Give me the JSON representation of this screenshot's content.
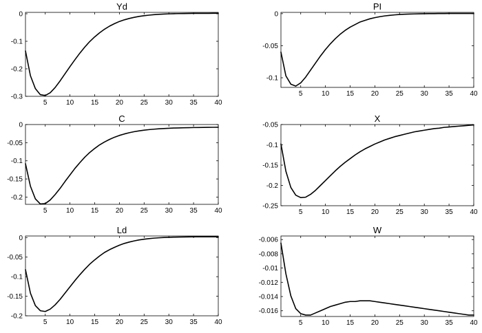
{
  "chart_data": [
    {
      "type": "line",
      "title": "Yd",
      "xlim": [
        1,
        40
      ],
      "ylim": [
        -0.3,
        0.005
      ],
      "x_ticks": [
        5,
        10,
        15,
        20,
        25,
        30,
        35,
        40
      ],
      "y_ticks": [
        0,
        -0.1,
        -0.2,
        -0.3
      ],
      "y_tick_labels": [
        "0",
        "-0.1",
        "-0.2",
        "-0.3"
      ],
      "x": [
        1,
        2,
        3,
        4,
        5,
        6,
        7,
        8,
        9,
        10,
        11,
        12,
        13,
        14,
        15,
        16,
        17,
        18,
        19,
        20,
        21,
        22,
        23,
        24,
        25,
        26,
        27,
        28,
        29,
        30,
        31,
        32,
        33,
        34,
        35,
        36,
        37,
        38,
        39,
        40
      ],
      "values": [
        -0.135,
        -0.225,
        -0.272,
        -0.294,
        -0.297,
        -0.287,
        -0.268,
        -0.244,
        -0.218,
        -0.192,
        -0.167,
        -0.143,
        -0.121,
        -0.101,
        -0.084,
        -0.069,
        -0.056,
        -0.045,
        -0.036,
        -0.028,
        -0.022,
        -0.017,
        -0.013,
        -0.0095,
        -0.007,
        -0.005,
        -0.0033,
        -0.002,
        -0.001,
        -0.0003,
        0.0002,
        0.0006,
        0.0009,
        0.0011,
        0.0013,
        0.0014,
        0.0015,
        0.0015,
        0.0016,
        0.0016
      ]
    },
    {
      "type": "line",
      "title": "PI",
      "xlim": [
        1,
        40
      ],
      "ylim": [
        -0.115,
        0.002
      ],
      "x_ticks": [
        5,
        10,
        15,
        20,
        25,
        30,
        35,
        40
      ],
      "y_ticks": [
        0,
        -0.05,
        -0.1
      ],
      "y_tick_labels": [
        "0",
        "-0.05",
        "-0.1"
      ],
      "x": [
        1,
        2,
        3,
        4,
        5,
        6,
        7,
        8,
        9,
        10,
        11,
        12,
        13,
        14,
        15,
        16,
        17,
        18,
        19,
        20,
        21,
        22,
        23,
        24,
        25,
        26,
        27,
        28,
        29,
        30,
        31,
        32,
        33,
        34,
        35,
        36,
        37,
        38,
        39,
        40
      ],
      "values": [
        -0.06,
        -0.097,
        -0.11,
        -0.113,
        -0.108,
        -0.099,
        -0.088,
        -0.077,
        -0.066,
        -0.056,
        -0.047,
        -0.039,
        -0.032,
        -0.026,
        -0.021,
        -0.017,
        -0.013,
        -0.0105,
        -0.008,
        -0.0062,
        -0.0047,
        -0.0035,
        -0.0026,
        -0.0019,
        -0.0013,
        -0.0009,
        -0.0006,
        -0.0004,
        -0.0002,
        -0.0001,
        0.0,
        0.0001,
        0.0002,
        0.0002,
        0.0003,
        0.0003,
        0.0003,
        0.0003,
        0.0003,
        0.0003
      ]
    },
    {
      "type": "line",
      "title": "C",
      "xlim": [
        1,
        40
      ],
      "ylim": [
        -0.22,
        0.0
      ],
      "x_ticks": [
        5,
        10,
        15,
        20,
        25,
        30,
        35,
        40
      ],
      "y_ticks": [
        0,
        -0.05,
        -0.1,
        -0.15,
        -0.2
      ],
      "y_tick_labels": [
        "0",
        "-0.05",
        "-0.1",
        "-0.15",
        "-0.2"
      ],
      "x": [
        1,
        2,
        3,
        4,
        5,
        6,
        7,
        8,
        9,
        10,
        11,
        12,
        13,
        14,
        15,
        16,
        17,
        18,
        19,
        20,
        21,
        22,
        23,
        24,
        25,
        26,
        27,
        28,
        29,
        30,
        31,
        32,
        33,
        34,
        35,
        36,
        37,
        38,
        39,
        40
      ],
      "values": [
        -0.108,
        -0.17,
        -0.205,
        -0.219,
        -0.218,
        -0.208,
        -0.193,
        -0.176,
        -0.157,
        -0.139,
        -0.121,
        -0.105,
        -0.09,
        -0.077,
        -0.066,
        -0.056,
        -0.048,
        -0.041,
        -0.035,
        -0.03,
        -0.026,
        -0.0225,
        -0.0197,
        -0.0174,
        -0.0155,
        -0.014,
        -0.0128,
        -0.0118,
        -0.011,
        -0.0103,
        -0.0097,
        -0.0093,
        -0.0089,
        -0.0086,
        -0.0083,
        -0.0081,
        -0.0079,
        -0.0077,
        -0.0076,
        -0.0075
      ]
    },
    {
      "type": "line",
      "title": "X",
      "xlim": [
        1,
        40
      ],
      "ylim": [
        -0.25,
        -0.05
      ],
      "x_ticks": [
        5,
        10,
        15,
        20,
        25,
        30,
        35,
        40
      ],
      "y_ticks": [
        -0.05,
        -0.1,
        -0.15,
        -0.2,
        -0.25
      ],
      "y_tick_labels": [
        "-0.05",
        "-0.1",
        "-0.15",
        "-0.2",
        "-0.25"
      ],
      "x": [
        1,
        2,
        3,
        4,
        5,
        6,
        7,
        8,
        9,
        10,
        11,
        12,
        13,
        14,
        15,
        16,
        17,
        18,
        19,
        20,
        21,
        22,
        23,
        24,
        25,
        26,
        27,
        28,
        29,
        30,
        31,
        32,
        33,
        34,
        35,
        36,
        37,
        38,
        39,
        40
      ],
      "values": [
        -0.098,
        -0.165,
        -0.205,
        -0.224,
        -0.23,
        -0.229,
        -0.222,
        -0.212,
        -0.2,
        -0.188,
        -0.176,
        -0.164,
        -0.153,
        -0.143,
        -0.134,
        -0.125,
        -0.117,
        -0.11,
        -0.104,
        -0.098,
        -0.093,
        -0.088,
        -0.084,
        -0.08,
        -0.077,
        -0.074,
        -0.071,
        -0.068,
        -0.066,
        -0.064,
        -0.062,
        -0.06,
        -0.059,
        -0.057,
        -0.056,
        -0.055,
        -0.054,
        -0.053,
        -0.052,
        -0.051
      ]
    },
    {
      "type": "line",
      "title": "Ld",
      "xlim": [
        1,
        40
      ],
      "ylim": [
        -0.2,
        0.004
      ],
      "x_ticks": [
        5,
        10,
        15,
        20,
        25,
        30,
        35,
        40
      ],
      "y_ticks": [
        0,
        -0.05,
        -0.1,
        -0.15,
        -0.2
      ],
      "y_tick_labels": [
        "0",
        "-0.05",
        "-0.1",
        "-0.15",
        "-0.2"
      ],
      "x": [
        1,
        2,
        3,
        4,
        5,
        6,
        7,
        8,
        9,
        10,
        11,
        12,
        13,
        14,
        15,
        16,
        17,
        18,
        19,
        20,
        21,
        22,
        23,
        24,
        25,
        26,
        27,
        28,
        29,
        30,
        31,
        32,
        33,
        34,
        35,
        36,
        37,
        38,
        39,
        40
      ],
      "values": [
        -0.082,
        -0.142,
        -0.174,
        -0.187,
        -0.189,
        -0.183,
        -0.172,
        -0.158,
        -0.142,
        -0.126,
        -0.11,
        -0.095,
        -0.081,
        -0.068,
        -0.057,
        -0.047,
        -0.038,
        -0.031,
        -0.025,
        -0.0195,
        -0.015,
        -0.0115,
        -0.0085,
        -0.006,
        -0.0042,
        -0.0027,
        -0.0015,
        -0.0006,
        0.0001,
        0.0006,
        0.001,
        0.0013,
        0.0015,
        0.0017,
        0.0018,
        0.0019,
        0.002,
        0.002,
        0.002,
        0.002
      ]
    },
    {
      "type": "line",
      "title": "W",
      "xlim": [
        1,
        40
      ],
      "ylim": [
        -0.0168,
        -0.0055
      ],
      "x_ticks": [
        5,
        10,
        15,
        20,
        25,
        30,
        35,
        40
      ],
      "y_ticks": [
        -0.006,
        -0.008,
        -0.01,
        -0.012,
        -0.014,
        -0.016
      ],
      "y_tick_labels": [
        "-0.006",
        "-0.008",
        "-0.01",
        "-0.012",
        "-0.014",
        "-0.016"
      ],
      "x": [
        1,
        2,
        3,
        4,
        5,
        6,
        7,
        8,
        9,
        10,
        11,
        12,
        13,
        14,
        15,
        16,
        17,
        18,
        19,
        20,
        21,
        22,
        23,
        24,
        25,
        26,
        27,
        28,
        29,
        30,
        31,
        32,
        33,
        34,
        35,
        36,
        37,
        38,
        39,
        40
      ],
      "values": [
        -0.0065,
        -0.0108,
        -0.0139,
        -0.0157,
        -0.0164,
        -0.0166,
        -0.0166,
        -0.0163,
        -0.016,
        -0.0157,
        -0.0154,
        -0.0152,
        -0.015,
        -0.0148,
        -0.0147,
        -0.0147,
        -0.0146,
        -0.0146,
        -0.0146,
        -0.0147,
        -0.0148,
        -0.0149,
        -0.015,
        -0.0151,
        -0.0152,
        -0.0153,
        -0.0154,
        -0.0155,
        -0.0156,
        -0.0157,
        -0.0158,
        -0.0159,
        -0.016,
        -0.0161,
        -0.0162,
        -0.0163,
        -0.0164,
        -0.0165,
        -0.0166,
        -0.0166
      ]
    }
  ]
}
